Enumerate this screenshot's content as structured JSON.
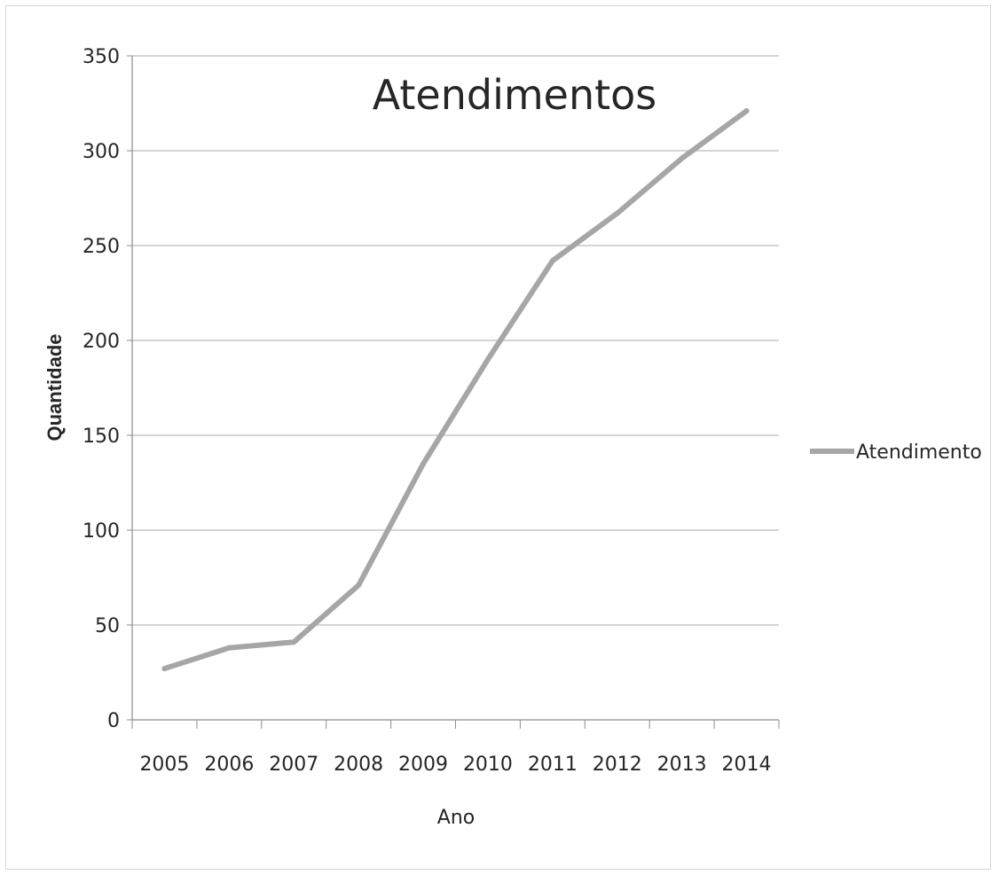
{
  "chart_data": {
    "type": "line",
    "title": "Atendimentos",
    "xlabel": "Ano",
    "ylabel": "Quantidade",
    "categories": [
      "2005",
      "2006",
      "2007",
      "2008",
      "2009",
      "2010",
      "2011",
      "2012",
      "2013",
      "2014"
    ],
    "series": [
      {
        "name": "Atendimento",
        "values": [
          27,
          38,
          41,
          71,
          135,
          190,
          242,
          267,
          296,
          321
        ],
        "color": "#a6a6a6"
      }
    ],
    "ylim": [
      0,
      350
    ],
    "yticks": [
      0,
      50,
      100,
      150,
      200,
      250,
      300,
      350
    ],
    "grid": true,
    "legend_position": "right"
  }
}
